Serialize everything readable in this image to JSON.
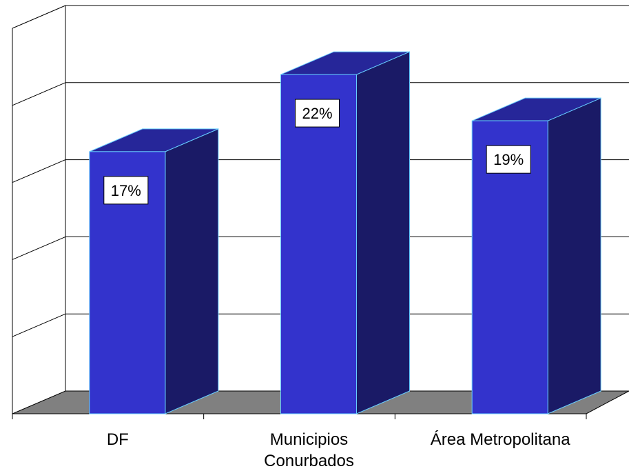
{
  "chart_data": {
    "type": "bar",
    "style": "3d-column",
    "categories": [
      [
        "DF"
      ],
      [
        "Municipios",
        "Conurbados"
      ],
      [
        "Área Metropolitana"
      ]
    ],
    "values": [
      17,
      22,
      19
    ],
    "data_labels": [
      "17%",
      "22%",
      "19%"
    ],
    "ylim": [
      0,
      25
    ],
    "grid": true,
    "legend": "none",
    "colors": {
      "bar_front": "#3333CC",
      "bar_side": "#1A1A66",
      "bar_top": "#262699",
      "bar_edge": "#66CCFF",
      "floor": "#808080",
      "gridline": "#000000"
    }
  }
}
